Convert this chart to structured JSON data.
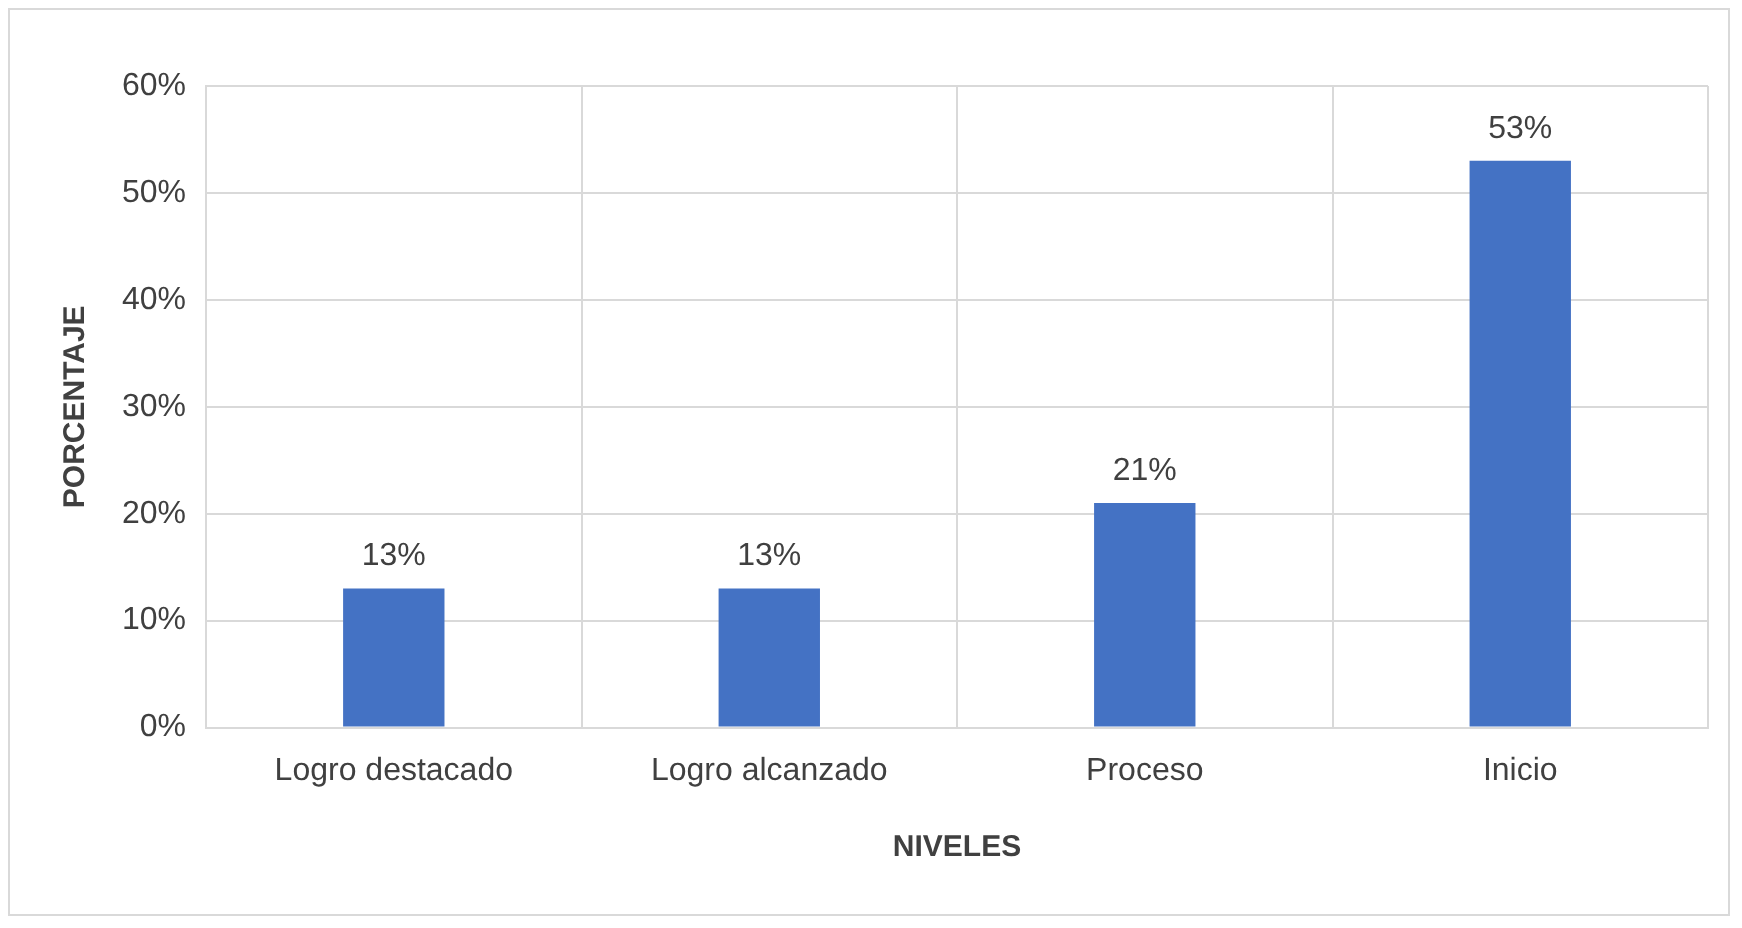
{
  "chart_data": {
    "type": "bar",
    "xlabel": "NIVELES",
    "ylabel": "PORCENTAJE",
    "categories": [
      "Logro destacado",
      "Logro alcanzado",
      "Proceso",
      "Inicio"
    ],
    "values": [
      13,
      13,
      21,
      53
    ],
    "color": "#4472c4",
    "value_labels": [
      "13%",
      "13%",
      "21%",
      "53%"
    ],
    "ylim": [
      0,
      60
    ],
    "yticks": [
      {
        "value": 0,
        "label": "0%"
      },
      {
        "value": 10,
        "label": "10%"
      },
      {
        "value": 20,
        "label": "20%"
      },
      {
        "value": 30,
        "label": "30%"
      },
      {
        "value": 40,
        "label": "40%"
      },
      {
        "value": 50,
        "label": "50%"
      },
      {
        "value": 60,
        "label": "60%"
      }
    ],
    "grid": true,
    "legend": false
  }
}
